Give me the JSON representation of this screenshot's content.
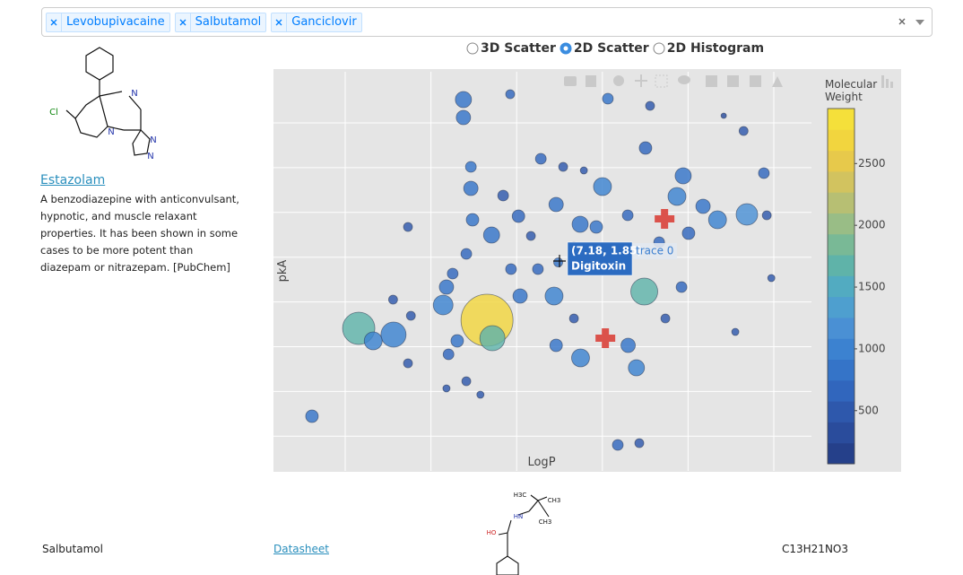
{
  "select": {
    "tags": [
      "Levobupivacaine",
      "Salbutamol",
      "Ganciclovir"
    ]
  },
  "radio": {
    "options": [
      "3D Scatter",
      "2D Scatter",
      "2D Histogram"
    ],
    "selected": "2D Scatter"
  },
  "sidebar": {
    "molecule_labels": [
      "Cl",
      "N",
      "N",
      "N",
      "N"
    ],
    "name": "Estazolam",
    "description": "A benzodiazepine with anticonvulsant, hypnotic, and muscle relaxant properties. It has been shown in some cases to be more potent than diazepam or nitrazepam. [PubChem]"
  },
  "chart_data": {
    "type": "scatter",
    "xlabel": "LogP",
    "ylabel": "pkA",
    "xlim": [
      0.3,
      13.3
    ],
    "ylim": [
      -2.8,
      6.1
    ],
    "grid": true,
    "series": [
      {
        "name": "trace 0",
        "x": [
          4.89,
          4.89,
          6.02,
          8.38,
          9.4,
          11.18,
          11.66,
          6.76,
          5.07,
          5.07,
          8.25,
          10.2,
          10.05,
          11.74,
          12.15,
          3.55,
          5.11,
          5.57,
          4.96,
          4.48,
          4.4,
          5.46,
          5.59,
          2.36,
          3.2,
          2.71,
          9.26,
          7.08,
          7.18,
          6.26,
          7.72,
          8.87,
          9.07,
          1.23,
          8.62,
          9.14,
          7.71,
          7.13,
          8.1,
          6.22,
          11.03,
          10.33,
          9.62,
          10.68,
          9.29,
          7.3,
          7.8,
          5.85,
          6.52,
          3.62,
          3.19,
          3.55,
          4.48,
          4.96,
          5.3,
          7.13,
          7.56,
          10.16,
          11.46,
          12.33,
          9.77,
          6.69,
          4.63,
          4.74,
          4.53,
          6.04,
          8.64,
          12.22,
          8.86,
          7.56
        ],
        "y": [
          5.48,
          5.08,
          5.6,
          5.5,
          5.34,
          5.12,
          4.78,
          4.16,
          3.98,
          3.5,
          3.54,
          3.78,
          3.32,
          2.92,
          3.84,
          2.64,
          2.8,
          2.46,
          2.04,
          1.3,
          0.9,
          0.56,
          0.16,
          0.38,
          0.24,
          0.1,
          1.2,
          1.1,
          1.85,
          1.1,
          -0.28,
          0,
          -0.5,
          -1.58,
          -2.22,
          -2.18,
          2.7,
          3.14,
          2.64,
          2.88,
          2.8,
          2.5,
          2.3,
          3.1,
          4.4,
          3.98,
          3.9,
          3.34,
          2.44,
          0.66,
          1.02,
          -0.4,
          -0.96,
          -0.8,
          -1.1,
          0,
          0.6,
          1.3,
          0.3,
          1.5,
          0.6,
          1.7,
          1.6,
          0.1,
          -0.2,
          1.7,
          1.9,
          2.9,
          2.9,
          2.2
        ],
        "sizes": [
          9,
          8,
          5,
          6,
          5,
          3,
          5,
          6,
          6,
          8,
          10,
          9,
          10,
          12,
          6,
          5,
          7,
          9,
          6,
          8,
          11,
          29,
          14,
          18,
          14,
          10,
          15,
          10,
          5,
          8,
          10,
          8,
          9,
          7,
          6,
          5,
          9,
          8,
          7,
          7,
          10,
          7,
          6,
          8,
          7,
          5,
          4,
          6,
          5,
          5,
          5,
          5,
          4,
          5,
          4,
          7,
          5,
          6,
          4,
          4,
          5,
          6,
          6,
          7,
          6,
          6,
          7,
          5,
          6,
          5
        ],
        "weights": [
          700,
          700,
          600,
          700,
          500,
          300,
          500,
          600,
          700,
          800,
          900,
          800,
          900,
          1100,
          600,
          500,
          700,
          800,
          600,
          800,
          1000,
          2800,
          1700,
          1600,
          1000,
          900,
          1650,
          900,
          765,
          800,
          900,
          800,
          900,
          700,
          600,
          500,
          800,
          800,
          700,
          600,
          900,
          600,
          600,
          700,
          600,
          500,
          400,
          500,
          500,
          500,
          500,
          400,
          400,
          500,
          400,
          700,
          500,
          600,
          400,
          400,
          500,
          600,
          600,
          700,
          600,
          600,
          700,
          500,
          600,
          500
        ]
      },
      {
        "color": "#d9413a",
        "marker": "cross",
        "x": [
          9.75,
          8.32
        ],
        "y": [
          2.82,
          0.16
        ]
      }
    ],
    "colorbar": {
      "title": "Molecular Weight",
      "clim": [
        70,
        2945
      ],
      "ticks": [
        500,
        1000,
        1500,
        2000,
        2500
      ],
      "colorscale": [
        "#25408a",
        "#2a4c9c",
        "#2e58ac",
        "#3166bd",
        "#3574c8",
        "#3c82d0",
        "#4a90d4",
        "#4e9fcf",
        "#52abc1",
        "#5fb3a9",
        "#79b996",
        "#99bd86",
        "#b7bf73",
        "#d2c35f",
        "#e7c94b",
        "#f2d53e",
        "#f5e03a"
      ]
    },
    "hover": {
      "label": "(7.18, 1.85)",
      "name": "Digitoxin"
    }
  },
  "table": {
    "rows": [
      [
        "Salbutamol",
        "Datasheet",
        "C13H21NO3"
      ]
    ]
  },
  "bottom_molecule_labels": [
    "H3C",
    "CH3",
    "CH3",
    "HN",
    "HO"
  ]
}
